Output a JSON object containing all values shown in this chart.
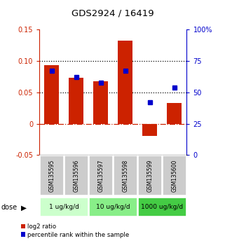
{
  "title": "GDS2924 / 16419",
  "samples": [
    "GSM135595",
    "GSM135596",
    "GSM135597",
    "GSM135598",
    "GSM135599",
    "GSM135600"
  ],
  "log2_ratio": [
    0.093,
    0.073,
    0.068,
    0.133,
    -0.02,
    0.033
  ],
  "percentile_rank": [
    67,
    62,
    58,
    67,
    42,
    54
  ],
  "dose_groups": [
    {
      "label": "1 ug/kg/d",
      "samples": [
        0,
        1
      ],
      "color": "#ccffcc"
    },
    {
      "label": "10 ug/kg/d",
      "samples": [
        2,
        3
      ],
      "color": "#88ee88"
    },
    {
      "label": "1000 ug/kg/d",
      "samples": [
        4,
        5
      ],
      "color": "#44cc44"
    }
  ],
  "bar_color": "#cc2200",
  "marker_color": "#0000cc",
  "left_ylim": [
    -0.05,
    0.15
  ],
  "right_ylim": [
    0,
    100
  ],
  "left_yticks": [
    -0.05,
    0.0,
    0.05,
    0.1,
    0.15
  ],
  "left_yticklabels": [
    "-0.05",
    "0",
    "0.05",
    "0.10",
    "0.15"
  ],
  "right_yticks": [
    0,
    25,
    50,
    75,
    100
  ],
  "right_yticklabels": [
    "0",
    "25",
    "50",
    "75",
    "100%"
  ],
  "hlines": [
    0.05,
    0.1
  ],
  "zero_line": 0,
  "dose_label": "dose",
  "sample_box_color": "#cccccc",
  "legend_red_label": "log2 ratio",
  "legend_blue_label": "percentile rank within the sample"
}
